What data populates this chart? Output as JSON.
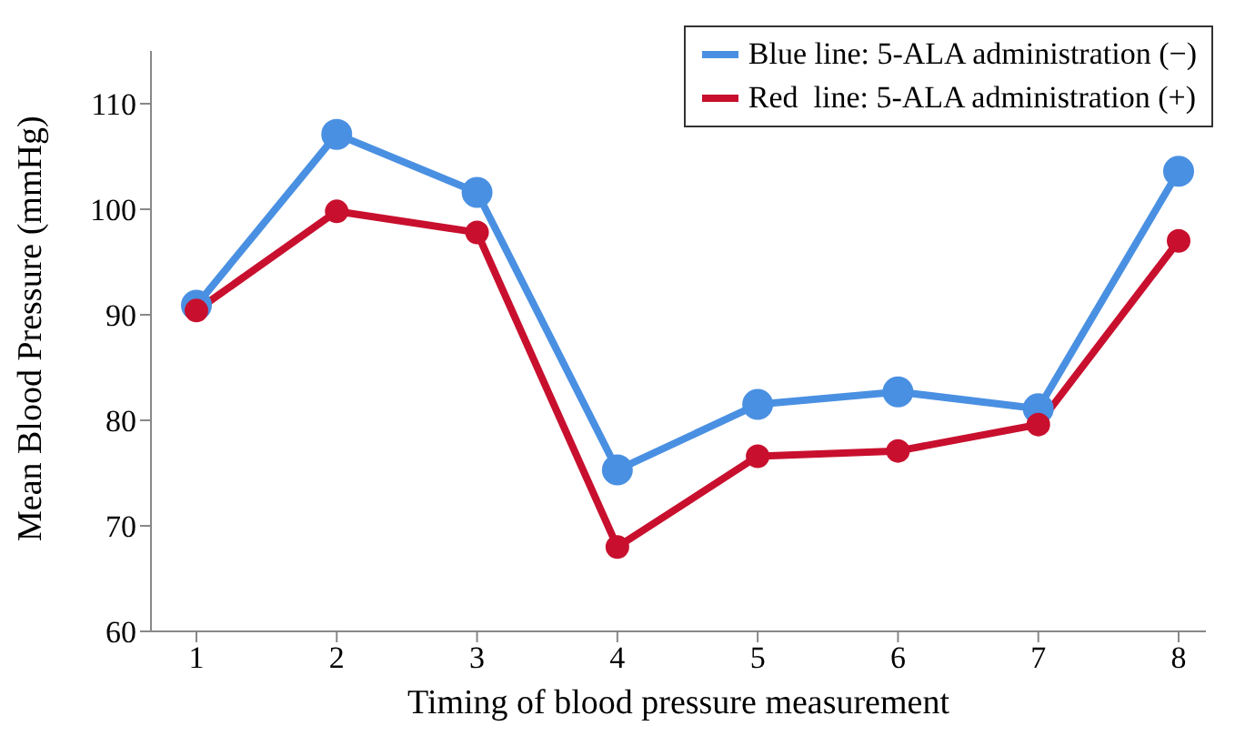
{
  "chart_data": {
    "type": "line",
    "xlabel": "Timing of blood pressure measurement",
    "ylabel": "Mean Blood Pressure (mmHg)",
    "categories": [
      "1",
      "2",
      "3",
      "4",
      "5",
      "6",
      "7",
      "8"
    ],
    "series": [
      {
        "name": "Blue line: 5-ALA administration (−)",
        "color": "#4a90e2",
        "values": [
          90.9,
          107.1,
          101.6,
          75.3,
          81.5,
          82.7,
          81.1,
          103.6
        ]
      },
      {
        "name": "Red  line: 5-ALA administration (+)",
        "color": "#c8102e",
        "values": [
          90.4,
          99.8,
          97.8,
          68.0,
          76.6,
          77.1,
          79.6,
          97.0
        ]
      }
    ],
    "ylim": [
      60,
      115
    ],
    "yticks": [
      60,
      70,
      80,
      90,
      100,
      110
    ],
    "grid": false,
    "legend": "top right",
    "marker": "circle",
    "line_style": "solid"
  }
}
